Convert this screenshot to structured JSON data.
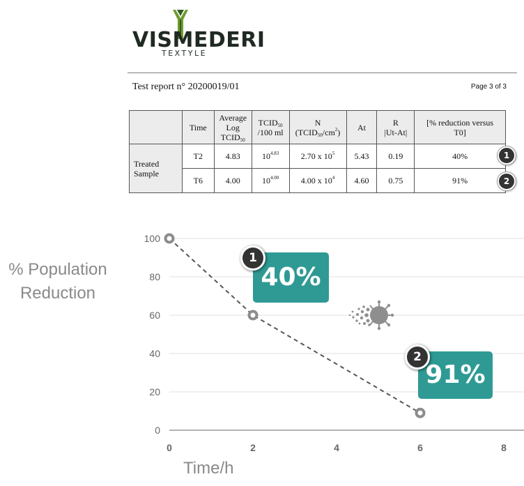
{
  "header": {
    "brand_name": "VISMEDERI",
    "brand_sub": "TEXTYLE",
    "report_title": "Test report n° 20200019/01",
    "page": "Page 3 of 3"
  },
  "table": {
    "headers": {
      "time": "Time",
      "avg_log": [
        "Average",
        "Log",
        "TCID",
        "50"
      ],
      "tcid": [
        "TCID",
        "50",
        "/100 ml"
      ],
      "n": [
        "N",
        "(TCID",
        "50",
        "/cm",
        "2",
        ")"
      ],
      "at": "At",
      "r": [
        "R",
        "|Ut-At|"
      ],
      "reduction": "[% reduction versus T0]"
    },
    "row_label": [
      "Treated",
      "Sample"
    ],
    "rows": [
      {
        "time": "T2",
        "avg_log": "4.83",
        "tcid_base": "10",
        "tcid_exp": "4.83",
        "n_base": "2.70 x 10",
        "n_exp": "5",
        "at": "5.43",
        "r": "0.19",
        "reduction": "40%",
        "badge": "1"
      },
      {
        "time": "T6",
        "avg_log": "4.00",
        "tcid_base": "10",
        "tcid_exp": "4.00",
        "n_base": "4.00 x 10",
        "n_exp": "4",
        "at": "4.60",
        "r": "0.75",
        "reduction": "91%",
        "badge": "2"
      }
    ]
  },
  "chart_data": {
    "type": "line",
    "title": "",
    "xlabel": "Time/h",
    "ylabel": "% Population Reduction",
    "ylabel_lines": [
      "% Population",
      "Reduction"
    ],
    "x": [
      0,
      2,
      6
    ],
    "series": [
      {
        "values": [
          100,
          60,
          9
        ]
      }
    ],
    "xlim": [
      0,
      8
    ],
    "ylim": [
      0,
      100
    ],
    "xticks": [
      0,
      2,
      4,
      6,
      8
    ],
    "yticks": [
      0,
      20,
      40,
      60,
      80,
      100
    ],
    "grid": "horizontal",
    "line_style": "dashed",
    "annotations": [
      {
        "badge": "1",
        "text": "40%"
      },
      {
        "badge": "2",
        "text": "91%"
      }
    ]
  },
  "colors": {
    "accent_teal": "#2f9a94",
    "badge_dark": "#333333",
    "line_gray": "#555555",
    "marker_gray": "#8c8c8c",
    "brand_green": "#6f9b2f",
    "virus_icon": "#8e8e8e"
  },
  "icons": [
    "brand-logo-mark",
    "virus-icon"
  ]
}
